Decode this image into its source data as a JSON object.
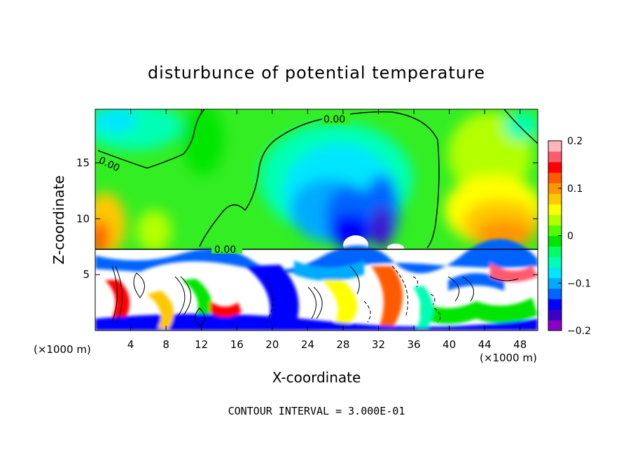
{
  "chart_data": {
    "type": "heatmap",
    "title": "disturbunce of potential temperature",
    "xlabel": "X-coordinate",
    "ylabel": "Z-coordinate",
    "x_unit_left": "(×1000 m)",
    "x_unit_right": "(×1000 m)",
    "xlim": [
      0,
      50
    ],
    "ylim": [
      0,
      19.8
    ],
    "x_ticks": [
      4,
      8,
      12,
      16,
      20,
      24,
      28,
      32,
      36,
      40,
      44,
      48
    ],
    "y_ticks": [
      5,
      10,
      15
    ],
    "contour_labels": [
      "0.00",
      "0.00",
      "0.00"
    ],
    "colorbar": {
      "min": -0.2,
      "max": 0.2,
      "ticks": [
        {
          "value": 0.2,
          "label": "0.2"
        },
        {
          "value": 0.1,
          "label": "0.1"
        },
        {
          "value": 0.0,
          "label": "0"
        },
        {
          "value": -0.1,
          "label": "−0.1"
        },
        {
          "value": -0.2,
          "label": "−0.2"
        }
      ],
      "colors": [
        "#8b00c8",
        "#3c00c8",
        "#0000ff",
        "#0064ff",
        "#00aaff",
        "#00e6ff",
        "#00ffb4",
        "#00ff64",
        "#00e600",
        "#50ff00",
        "#b4ff00",
        "#ffff00",
        "#ffc800",
        "#ff9600",
        "#ff5a00",
        "#ff0000",
        "#ff5a6e",
        "#ffb4be"
      ]
    },
    "footer": "CONTOUR INTERVAL = 3.000E-01"
  }
}
